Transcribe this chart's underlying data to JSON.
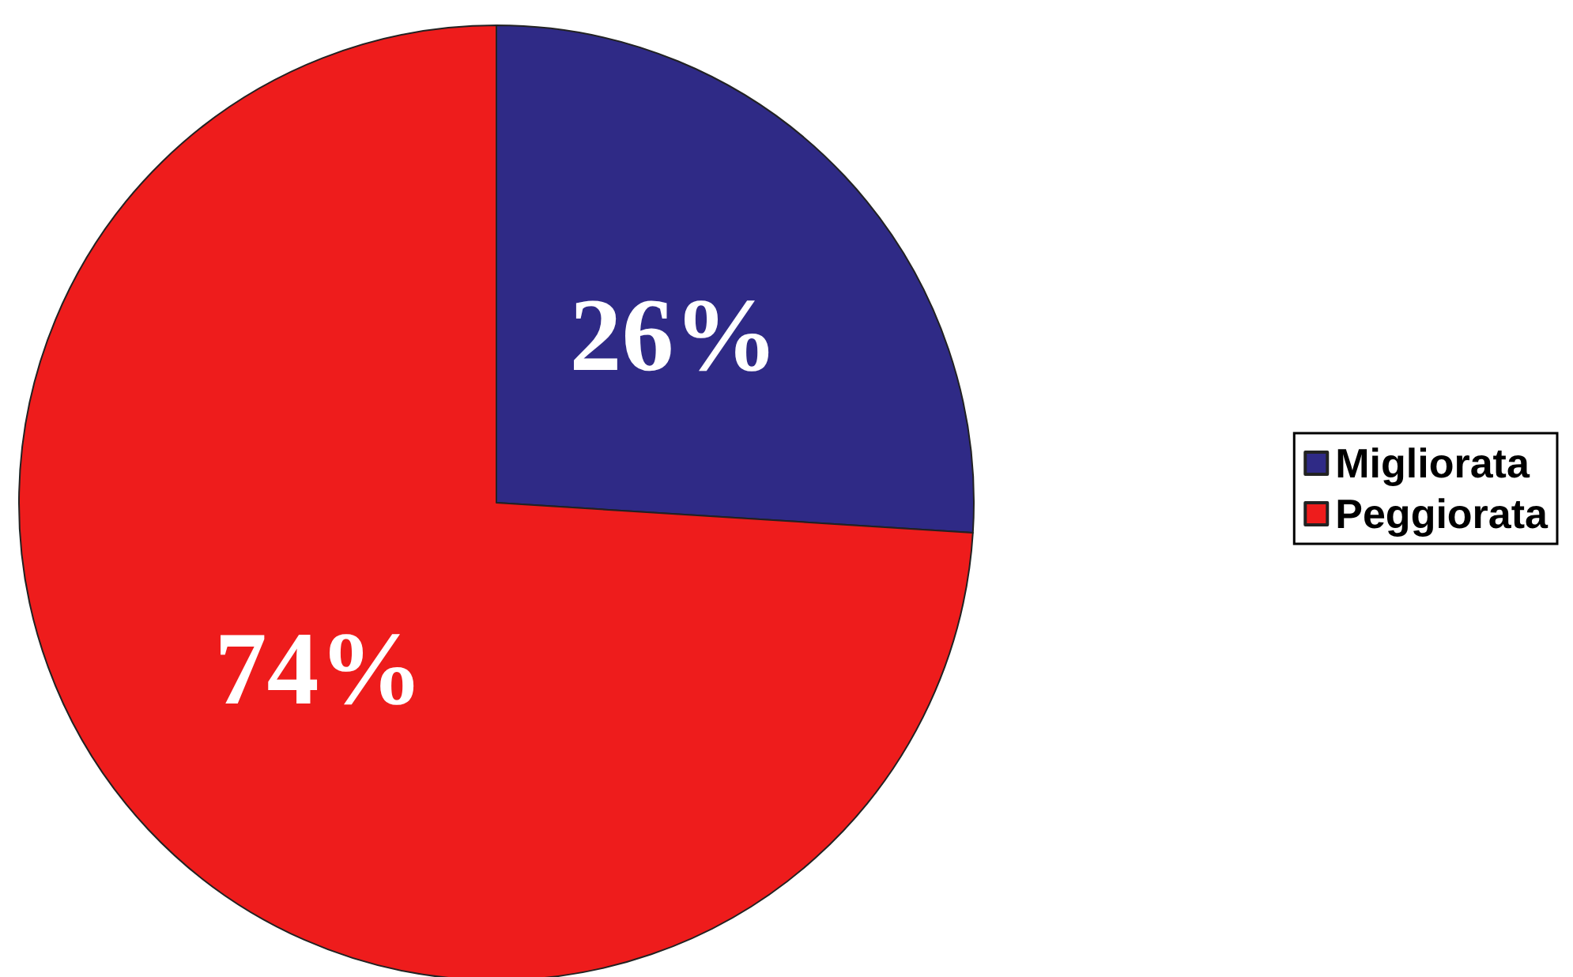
{
  "chart_data": {
    "type": "pie",
    "categories": [
      "Migliorata",
      "Peggiorata"
    ],
    "values": [
      26,
      74
    ],
    "colors": [
      "#2f2a86",
      "#ee1c1c"
    ],
    "value_labels": [
      "26%",
      "74%"
    ],
    "legend": "right"
  }
}
